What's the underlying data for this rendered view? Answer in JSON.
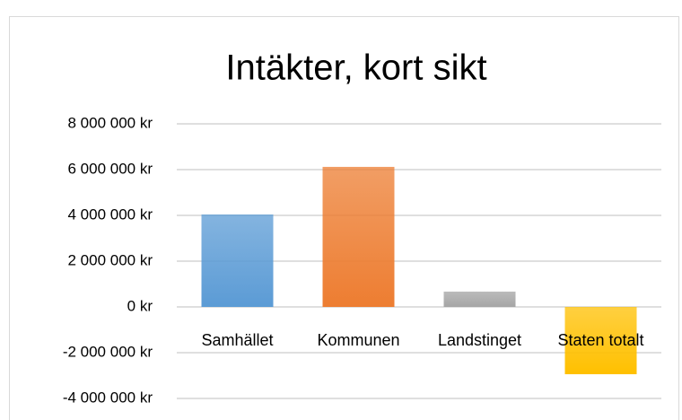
{
  "chart_data": {
    "type": "bar",
    "title": "Intäkter, kort sikt",
    "categories": [
      "Samhället",
      "Kommunen",
      "Landstinget",
      "Staten totalt"
    ],
    "values": [
      4040000,
      6120000,
      670000,
      -2940000
    ],
    "colors": [
      "#5b9bd5",
      "#ed7d31",
      "#a5a5a5",
      "#ffc000"
    ],
    "ylim": [
      -4000000,
      8000000
    ],
    "yticks": [
      {
        "value": -4000000,
        "label": "-4 000 000 kr"
      },
      {
        "value": -2000000,
        "label": "-2 000 000 kr"
      },
      {
        "value": 0,
        "label": "0 kr"
      },
      {
        "value": 2000000,
        "label": "2 000 000 kr"
      },
      {
        "value": 4000000,
        "label": "4 000 000 kr"
      },
      {
        "value": 6000000,
        "label": "6 000 000 kr"
      },
      {
        "value": 8000000,
        "label": "8 000 000 kr"
      }
    ],
    "negative_tick_color": "#ff0000",
    "grid": true
  }
}
